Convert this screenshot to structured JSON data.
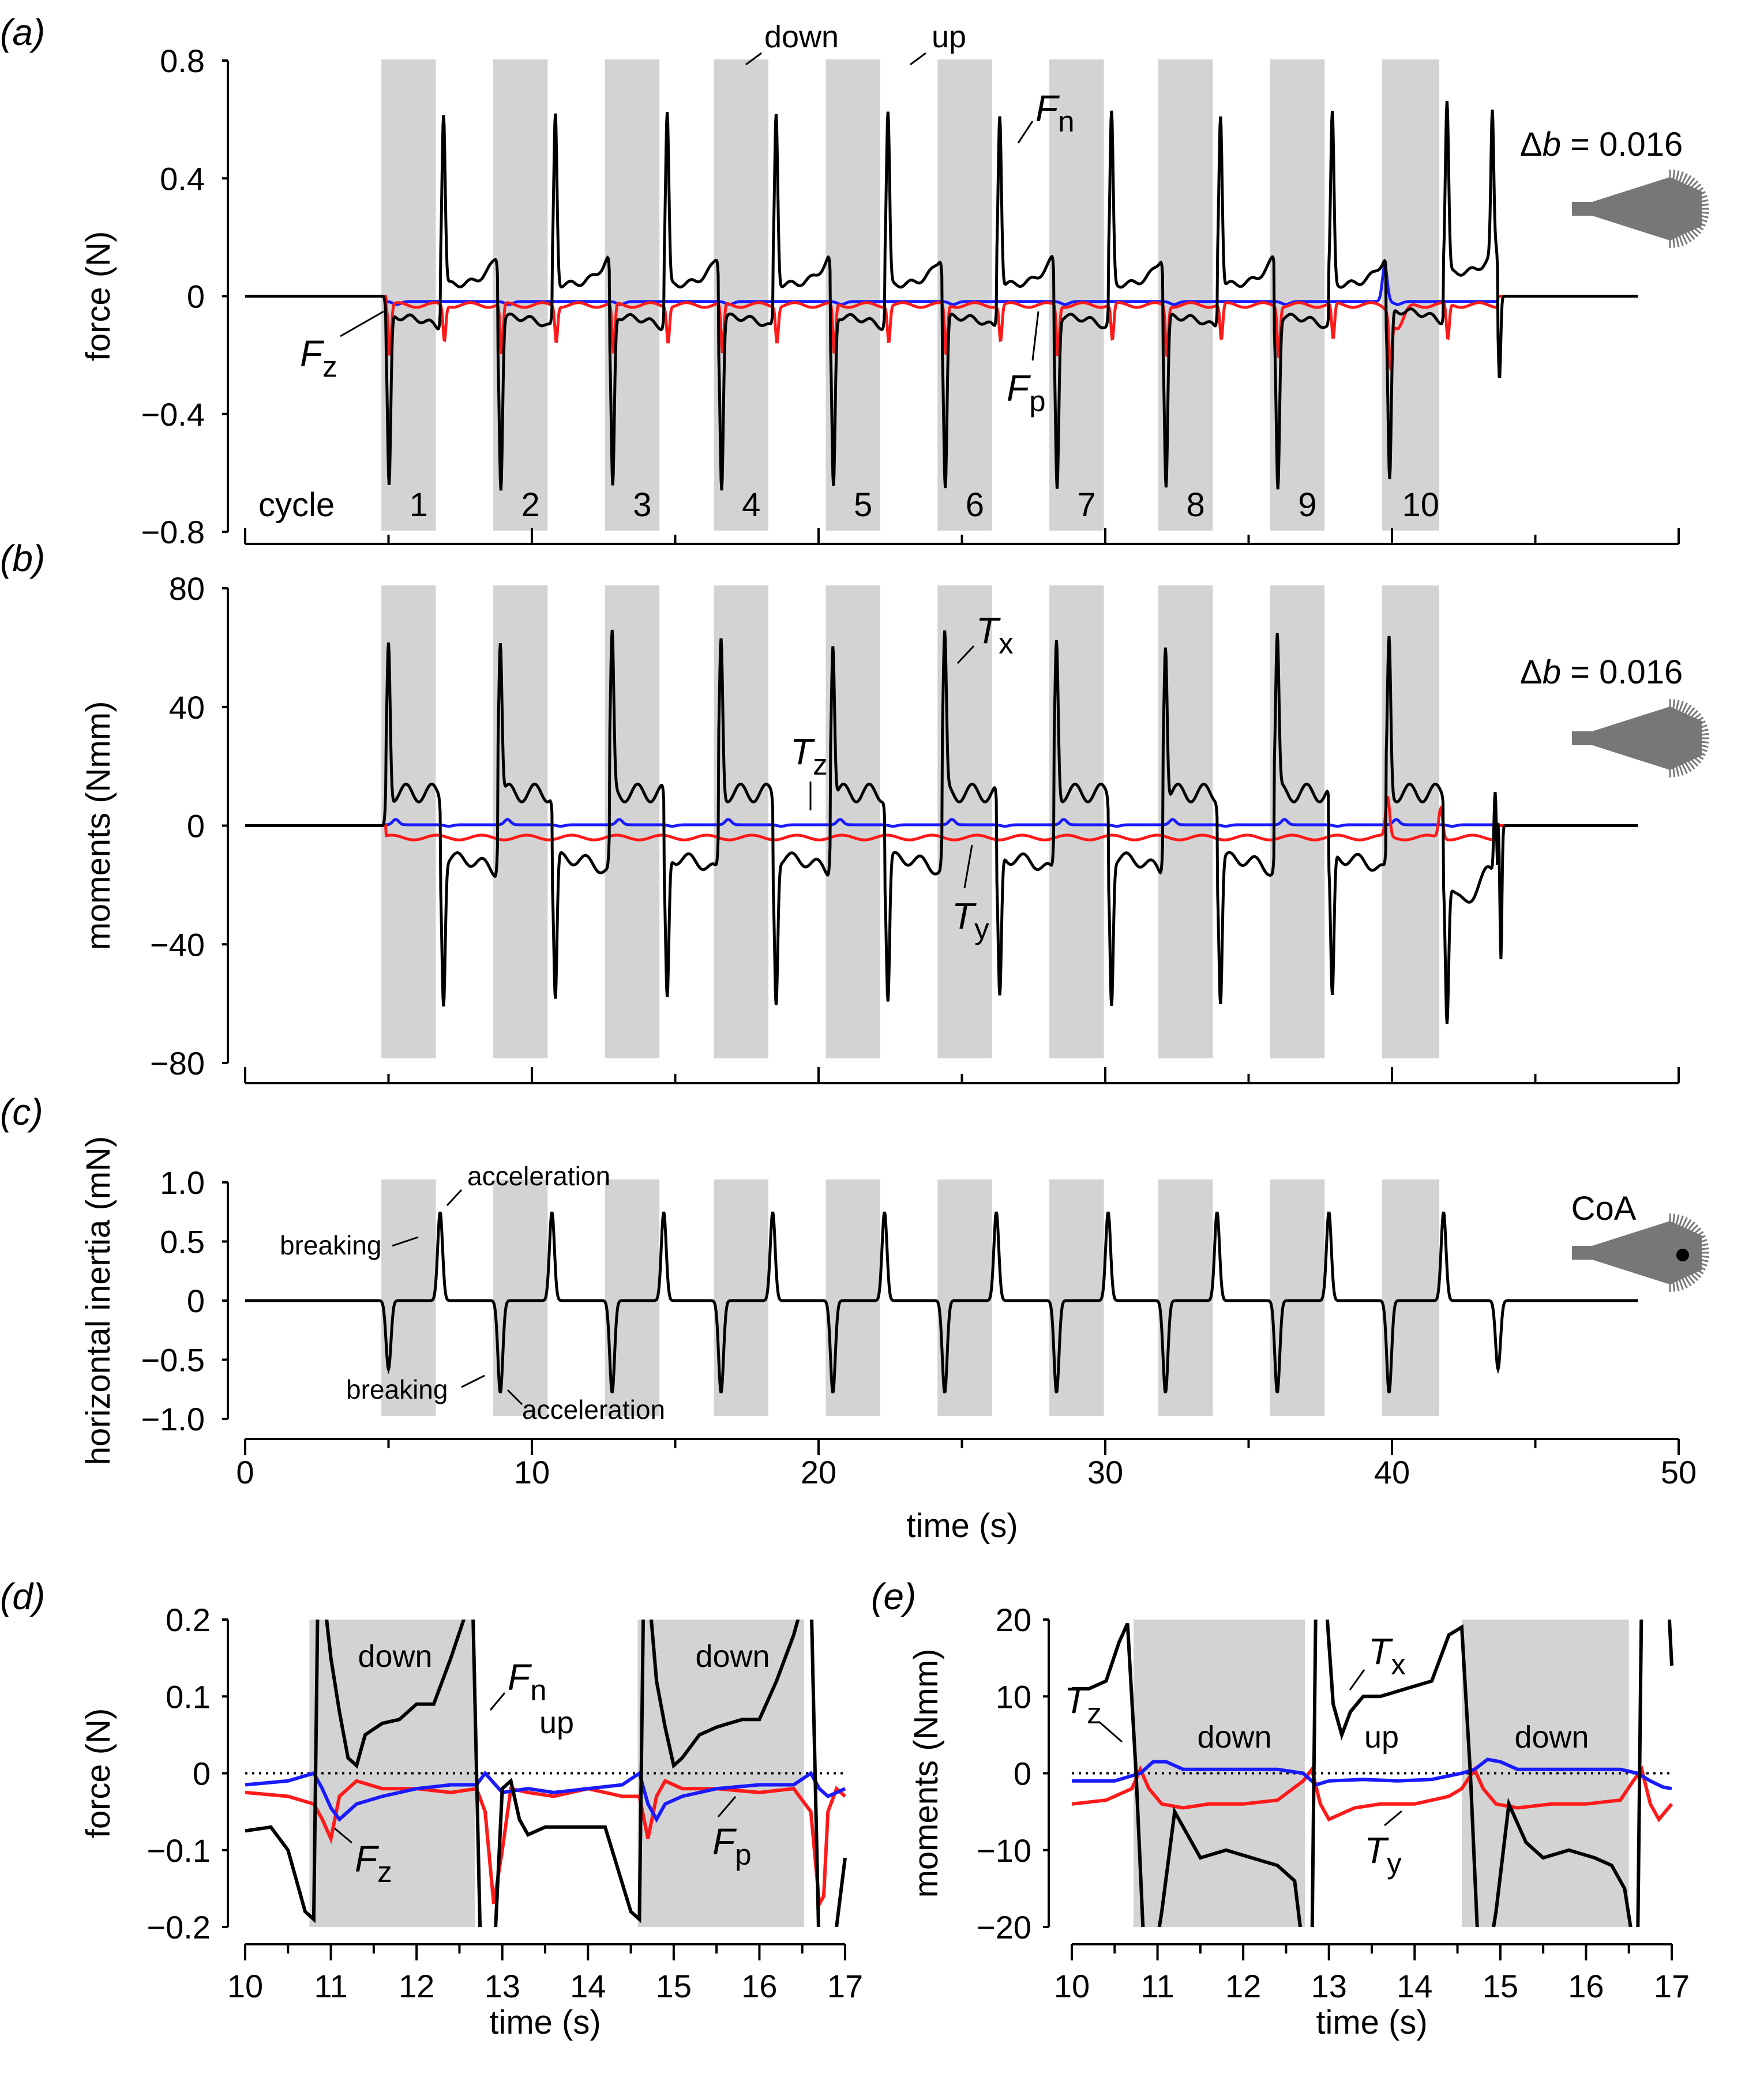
{
  "panels": {
    "a": {
      "label": "(a)",
      "ylabel": "force (N)",
      "yticks": [
        "0.8",
        "0.4",
        "0",
        "−0.4",
        "−0.8"
      ],
      "cycle_label": "cycle",
      "cycles": [
        "1",
        "2",
        "3",
        "4",
        "5",
        "6",
        "7",
        "8",
        "9",
        "10"
      ],
      "ann_down": "down",
      "ann_up": "up",
      "wing_label": "Δb = 0.016"
    },
    "b": {
      "label": "(b)",
      "ylabel": "moments (Nmm)",
      "yticks": [
        "80",
        "40",
        "0",
        "−40",
        "−80"
      ],
      "wing_label": "Δb = 0.016"
    },
    "c": {
      "label": "(c)",
      "ylabel": "horizontal inertia (mN)",
      "yticks": [
        "1.0",
        "0.5",
        "0",
        "−0.5",
        "−1.0"
      ],
      "xticks": [
        "0",
        "10",
        "20",
        "30",
        "40",
        "50"
      ],
      "xlabel": "time (s)",
      "ann_breaking_top": "breaking",
      "ann_accel_top": "acceleration",
      "ann_breaking_bot": "breaking",
      "ann_accel_bot": "acceleration",
      "wing_label": "CoA"
    },
    "d": {
      "label": "(d)",
      "ylabel": "force (N)",
      "yticks": [
        "0.2",
        "0.1",
        "0",
        "−0.1",
        "−0.2"
      ],
      "xticks": [
        "10",
        "11",
        "12",
        "13",
        "14",
        "15",
        "16",
        "17"
      ],
      "xlabel": "time (s)",
      "ann_down1": "down",
      "ann_down2": "down",
      "ann_up": "up"
    },
    "e": {
      "label": "(e)",
      "ylabel": "moments (Nmm)",
      "yticks": [
        "20",
        "10",
        "0",
        "−10",
        "−20"
      ],
      "xticks": [
        "10",
        "11",
        "12",
        "13",
        "14",
        "15",
        "16",
        "17"
      ],
      "xlabel": "time (s)",
      "ann_down1": "down",
      "ann_down2": "down",
      "ann_up": "up"
    }
  },
  "series_labels": {
    "Fn": [
      "F",
      "n"
    ],
    "Fz": [
      "F",
      "z"
    ],
    "Fp": [
      "F",
      "p"
    ],
    "Tx": [
      "T",
      "x"
    ],
    "Ty": [
      "T",
      "y"
    ],
    "Tz": [
      "T",
      "z"
    ]
  },
  "colors": {
    "black": "#000000",
    "blue": "#1a1aff",
    "red": "#ff1a1a",
    "shade": "#d3d3d3",
    "wing": "#777777"
  },
  "chart_data": [
    {
      "panel": "a",
      "type": "line",
      "xlim": [
        0,
        50
      ],
      "ylim": [
        -0.8,
        0.8
      ],
      "down_strokes": [
        [
          4.9,
          6.8
        ],
        [
          8.8,
          10.7
        ],
        [
          12.7,
          14.6
        ],
        [
          16.5,
          18.4
        ],
        [
          20.4,
          22.3
        ],
        [
          24.3,
          26.2
        ],
        [
          28.2,
          30.1
        ],
        [
          32.0,
          33.9
        ],
        [
          35.9,
          37.8
        ],
        [
          39.8,
          41.8
        ]
      ],
      "series": [
        {
          "name": "Fn",
          "color": "black",
          "peak_max": 0.62,
          "peak_min": -0.63,
          "down_baseline": -0.08,
          "up_baseline": 0.06
        },
        {
          "name": "Fz",
          "color": "red",
          "down_baseline": -0.03,
          "up_baseline": -0.02,
          "spike": -0.17
        },
        {
          "name": "Fp",
          "color": "blue",
          "baseline": -0.02,
          "late_peak": 0.1
        }
      ]
    },
    {
      "panel": "b",
      "type": "line",
      "xlim": [
        0,
        50
      ],
      "ylim": [
        -80,
        80
      ],
      "series": [
        {
          "name": "Tx",
          "color": "black",
          "peak_max": 62,
          "peak_min": -58,
          "down_baseline": -12,
          "up_baseline": 12
        },
        {
          "name": "Ty",
          "color": "red",
          "baseline": -4,
          "late_peak": 10
        },
        {
          "name": "Tz",
          "color": "blue",
          "baseline": 0.5
        }
      ]
    },
    {
      "panel": "c",
      "type": "line",
      "xlim": [
        0,
        50
      ],
      "ylim": [
        -1.0,
        1.0
      ],
      "series": [
        {
          "name": "inertia",
          "color": "black",
          "peaks_pos": [
            [
              6.8,
              0.75
            ],
            [
              10.7,
              0.75
            ],
            [
              14.6,
              0.75
            ],
            [
              18.4,
              0.75
            ],
            [
              22.3,
              0.75
            ],
            [
              26.2,
              0.75
            ],
            [
              30.1,
              0.75
            ],
            [
              33.9,
              0.75
            ],
            [
              37.8,
              0.75
            ],
            [
              41.8,
              0.75
            ]
          ],
          "peaks_neg": [
            [
              5.0,
              -0.58
            ],
            [
              8.9,
              -0.78
            ],
            [
              12.8,
              -0.78
            ],
            [
              16.6,
              -0.78
            ],
            [
              20.5,
              -0.78
            ],
            [
              24.4,
              -0.78
            ],
            [
              28.3,
              -0.78
            ],
            [
              32.1,
              -0.78
            ],
            [
              36.0,
              -0.78
            ],
            [
              39.9,
              -0.78
            ],
            [
              43.7,
              -0.58
            ]
          ]
        }
      ]
    },
    {
      "panel": "d",
      "type": "line",
      "xlim": [
        10,
        17
      ],
      "ylim": [
        -0.2,
        0.2
      ],
      "down_strokes": [
        [
          10.75,
          12.68
        ],
        [
          14.58,
          16.52
        ]
      ],
      "series": [
        {
          "name": "Fn",
          "color": "black",
          "x": [
            10.0,
            10.3,
            10.5,
            10.7,
            10.8,
            10.85,
            10.9,
            11.0,
            11.1,
            11.2,
            11.3,
            11.4,
            11.6,
            11.8,
            12.0,
            12.2,
            12.4,
            12.55,
            12.65,
            12.75,
            12.9,
            13.0,
            13.1,
            13.2,
            13.3,
            13.5,
            13.8,
            14.2,
            14.5,
            14.6,
            14.65,
            14.7,
            14.8,
            14.9,
            15.0,
            15.1,
            15.3,
            15.5,
            15.8,
            16.0,
            16.2,
            16.4,
            16.5,
            16.6,
            16.7,
            16.8,
            16.9,
            17.0
          ],
          "y": [
            -0.075,
            -0.07,
            -0.1,
            -0.18,
            -0.19,
            0.25,
            0.25,
            0.15,
            0.08,
            0.02,
            0.01,
            0.05,
            0.065,
            0.07,
            0.09,
            0.09,
            0.15,
            0.2,
            0.25,
            -0.25,
            -0.25,
            -0.02,
            -0.01,
            -0.06,
            -0.08,
            -0.07,
            -0.07,
            -0.07,
            -0.18,
            -0.19,
            0.25,
            0.25,
            0.12,
            0.06,
            0.01,
            0.02,
            0.05,
            0.06,
            0.07,
            0.07,
            0.12,
            0.18,
            0.22,
            0.25,
            -0.25,
            -0.25,
            -0.2,
            -0.11
          ]
        },
        {
          "name": "Fz",
          "color": "red",
          "x": [
            10.0,
            10.5,
            10.8,
            10.9,
            11.0,
            11.1,
            11.3,
            11.6,
            12.0,
            12.4,
            12.7,
            12.8,
            12.9,
            13.0,
            13.1,
            13.3,
            13.6,
            14.0,
            14.4,
            14.6,
            14.7,
            14.8,
            14.9,
            15.1,
            15.5,
            16.0,
            16.4,
            16.6,
            16.7,
            16.75,
            16.8,
            16.9,
            17.0
          ],
          "y": [
            -0.025,
            -0.03,
            -0.04,
            -0.06,
            -0.085,
            -0.03,
            -0.01,
            -0.02,
            -0.02,
            -0.025,
            -0.02,
            -0.05,
            -0.17,
            -0.1,
            -0.02,
            -0.025,
            -0.03,
            -0.02,
            -0.03,
            -0.03,
            -0.085,
            -0.03,
            -0.01,
            -0.02,
            -0.02,
            -0.025,
            -0.02,
            -0.05,
            -0.17,
            -0.16,
            -0.05,
            -0.02,
            -0.03
          ]
        },
        {
          "name": "Fp",
          "color": "blue",
          "x": [
            10.0,
            10.5,
            10.8,
            10.9,
            11.0,
            11.1,
            11.3,
            11.6,
            12.0,
            12.4,
            12.7,
            12.8,
            13.0,
            13.3,
            13.6,
            14.0,
            14.4,
            14.6,
            14.7,
            14.8,
            14.9,
            15.1,
            15.5,
            16.0,
            16.4,
            16.6,
            16.7,
            16.8,
            17.0
          ],
          "y": [
            -0.015,
            -0.01,
            0.0,
            -0.02,
            -0.045,
            -0.06,
            -0.04,
            -0.03,
            -0.02,
            -0.015,
            -0.015,
            0.0,
            -0.025,
            -0.02,
            -0.025,
            -0.02,
            -0.015,
            0.0,
            -0.04,
            -0.06,
            -0.04,
            -0.03,
            -0.02,
            -0.015,
            -0.015,
            0.0,
            -0.02,
            -0.03,
            -0.02
          ]
        }
      ]
    },
    {
      "panel": "e",
      "type": "line",
      "xlim": [
        10,
        17
      ],
      "ylim": [
        -20,
        20
      ],
      "down_strokes": [
        [
          10.72,
          12.72
        ],
        [
          14.55,
          16.5
        ]
      ],
      "series": [
        {
          "name": "Tx",
          "color": "black",
          "x": [
            10.0,
            10.2,
            10.4,
            10.55,
            10.65,
            10.75,
            10.85,
            10.95,
            11.05,
            11.2,
            11.35,
            11.5,
            11.8,
            12.1,
            12.4,
            12.6,
            12.72,
            12.8,
            12.85,
            12.95,
            13.05,
            13.15,
            13.25,
            13.4,
            13.6,
            13.9,
            14.2,
            14.4,
            14.55,
            14.65,
            14.75,
            14.85,
            14.95,
            15.1,
            15.3,
            15.5,
            15.8,
            16.1,
            16.3,
            16.45,
            16.52,
            16.6,
            16.65,
            16.95,
            17.0
          ],
          "y": [
            11,
            11,
            12,
            17,
            19.5,
            0,
            -25,
            -25,
            -18,
            -5,
            -8,
            -11,
            -10,
            -11,
            -12,
            -14,
            -25,
            -25,
            25,
            25,
            9,
            5,
            8,
            10,
            10,
            11,
            12,
            18,
            19,
            0,
            -25,
            -25,
            -18,
            -4,
            -9,
            -11,
            -10,
            -11,
            -12,
            -15,
            -20,
            -25,
            25,
            25,
            14
          ]
        },
        {
          "name": "Ty",
          "color": "red",
          "x": [
            10.0,
            10.4,
            10.7,
            10.8,
            10.9,
            11.05,
            11.3,
            11.6,
            12.0,
            12.4,
            12.7,
            12.8,
            12.9,
            13.0,
            13.3,
            13.6,
            14.0,
            14.4,
            14.55,
            14.7,
            14.8,
            14.95,
            15.2,
            15.6,
            16.0,
            16.4,
            16.55,
            16.65,
            16.75,
            16.85,
            17.0
          ],
          "y": [
            -4,
            -3.5,
            -2,
            0.5,
            -2,
            -4,
            -4.5,
            -4,
            -4,
            -3.5,
            -1,
            0.5,
            -4,
            -6,
            -4.5,
            -4,
            -4,
            -3,
            -2,
            0.5,
            -2,
            -4,
            -4.5,
            -4,
            -4,
            -3.5,
            -1,
            0.5,
            -4,
            -6,
            -4
          ]
        },
        {
          "name": "Tz",
          "color": "blue",
          "x": [
            10.0,
            10.5,
            10.8,
            10.95,
            11.1,
            11.3,
            11.6,
            12.0,
            12.4,
            12.7,
            12.85,
            13.0,
            13.4,
            13.8,
            14.2,
            14.55,
            14.7,
            14.85,
            15.0,
            15.2,
            15.5,
            16.0,
            16.4,
            16.6,
            16.75,
            16.9,
            17.0
          ],
          "y": [
            -1,
            -1,
            0,
            1.5,
            1.5,
            0.5,
            0.5,
            0.5,
            0.5,
            0,
            -1.5,
            -1,
            -0.8,
            -1,
            -0.8,
            0,
            0.5,
            1.8,
            1.5,
            0.5,
            0.5,
            0.5,
            0.5,
            0,
            -1,
            -1.8,
            -2
          ]
        }
      ]
    }
  ]
}
